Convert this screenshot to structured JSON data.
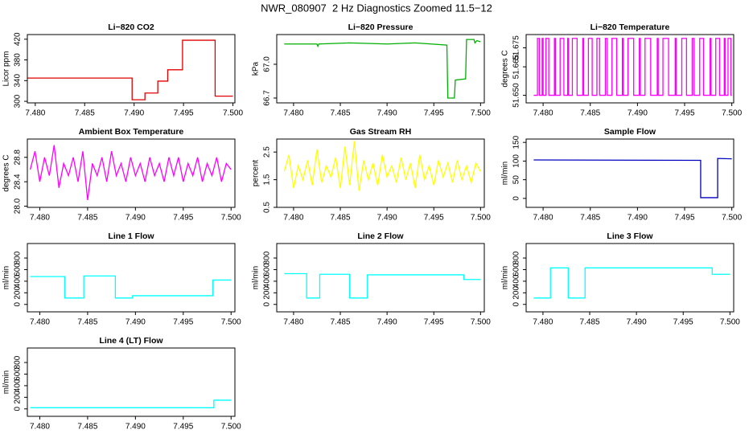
{
  "title": "NWR_080907  2 Hz Diagnostics Zoomed 11.5−12",
  "chart_data": [
    {
      "type": "line",
      "title": "Li−820 CO2",
      "ylabel": "Licor ppm",
      "color": "#e00000",
      "x": [
        7.479,
        7.4898,
        7.4898,
        7.4911,
        7.4911,
        7.4924,
        7.4924,
        7.4934,
        7.4934,
        7.4949,
        7.4949,
        7.4982,
        7.4982,
        7.5
      ],
      "values": [
        345,
        345,
        303,
        303,
        316,
        316,
        339,
        339,
        361,
        361,
        418,
        418,
        310,
        310
      ],
      "xlim": [
        7.4792,
        7.5002
      ],
      "ylim": [
        297,
        429
      ],
      "xticks": [
        {
          "value": 7.48,
          "label": "7.480"
        },
        {
          "value": 7.485,
          "label": "7.485"
        },
        {
          "value": 7.49,
          "label": "7.490"
        },
        {
          "value": 7.495,
          "label": "7.495"
        },
        {
          "value": 7.5,
          "label": "7.500"
        }
      ],
      "yticks": [
        300,
        340,
        380,
        420
      ]
    },
    {
      "type": "line",
      "title": "Li−820 Pressure",
      "ylabel": "kPa",
      "color": "#00b000",
      "x": [
        7.479,
        7.4825,
        7.4826,
        7.4827,
        7.486,
        7.49,
        7.493,
        7.4964,
        7.4965,
        7.4972,
        7.4973,
        7.4984,
        7.4985,
        7.4993,
        7.4994,
        7.4996,
        7.5
      ],
      "values": [
        67.18,
        67.18,
        67.16,
        67.18,
        67.19,
        67.18,
        67.19,
        67.17,
        66.7,
        66.7,
        66.86,
        66.87,
        67.22,
        67.22,
        67.19,
        67.21,
        67.2
      ],
      "xlim": [
        7.4782,
        7.5004
      ],
      "ylim": [
        66.657,
        67.264
      ],
      "xticks": [
        {
          "value": 7.48,
          "label": "7.480"
        },
        {
          "value": 7.485,
          "label": "7.485"
        },
        {
          "value": 7.49,
          "label": "7.490"
        },
        {
          "value": 7.495,
          "label": "7.495"
        },
        {
          "value": 7.5,
          "label": "7.500"
        }
      ],
      "yticks": [
        66.7,
        {
          "value": 67.0,
          "label": "67.0"
        }
      ]
    },
    {
      "type": "line",
      "title": "Li−820 Temperature",
      "ylabel": "degrees C",
      "color": "#ff00ff",
      "x": [
        7.479,
        7.4794,
        7.4794,
        7.4796,
        7.4796,
        7.4799,
        7.4799,
        7.48,
        7.48,
        7.4803,
        7.4803,
        7.4806,
        7.4806,
        7.4812,
        7.4812,
        7.4813,
        7.4813,
        7.4818,
        7.4818,
        7.4822,
        7.4822,
        7.4826,
        7.4826,
        7.4827,
        7.4827,
        7.4831,
        7.4831,
        7.4836,
        7.4836,
        7.4842,
        7.4842,
        7.4843,
        7.4843,
        7.4848,
        7.4848,
        7.4852,
        7.4852,
        7.4857,
        7.4857,
        7.486,
        7.486,
        7.4866,
        7.4866,
        7.4868,
        7.4868,
        7.4873,
        7.4873,
        7.4878,
        7.4878,
        7.4884,
        7.4884,
        7.4885,
        7.4885,
        7.489,
        7.489,
        7.4896,
        7.4896,
        7.4902,
        7.4902,
        7.4903,
        7.4903,
        7.4908,
        7.4908,
        7.4914,
        7.4914,
        7.4921,
        7.4921,
        7.4922,
        7.4922,
        7.4927,
        7.4927,
        7.4933,
        7.4933,
        7.494,
        7.494,
        7.4941,
        7.4941,
        7.4947,
        7.4947,
        7.4952,
        7.4952,
        7.4958,
        7.4958,
        7.496,
        7.496,
        7.4966,
        7.4966,
        7.497,
        7.497,
        7.4977,
        7.4977,
        7.4978,
        7.4978,
        7.4983,
        7.4983,
        7.4987,
        7.4987,
        7.4992,
        7.4992,
        7.4993,
        7.4993,
        7.4996,
        7.4996,
        7.4999,
        7.4999,
        7.5
      ],
      "values": [
        51.65,
        51.65,
        51.68,
        51.68,
        51.65,
        51.65,
        51.68,
        51.68,
        51.65,
        51.65,
        51.68,
        51.68,
        51.65,
        51.65,
        51.68,
        51.68,
        51.65,
        51.65,
        51.68,
        51.68,
        51.65,
        51.65,
        51.68,
        51.68,
        51.65,
        51.65,
        51.68,
        51.68,
        51.65,
        51.65,
        51.68,
        51.68,
        51.65,
        51.65,
        51.68,
        51.68,
        51.65,
        51.65,
        51.68,
        51.68,
        51.65,
        51.65,
        51.68,
        51.68,
        51.65,
        51.65,
        51.68,
        51.68,
        51.65,
        51.65,
        51.68,
        51.68,
        51.65,
        51.65,
        51.68,
        51.68,
        51.65,
        51.65,
        51.68,
        51.68,
        51.65,
        51.65,
        51.68,
        51.68,
        51.65,
        51.65,
        51.68,
        51.68,
        51.65,
        51.65,
        51.68,
        51.68,
        51.65,
        51.65,
        51.68,
        51.68,
        51.65,
        51.65,
        51.68,
        51.68,
        51.65,
        51.65,
        51.68,
        51.68,
        51.65,
        51.65,
        51.68,
        51.68,
        51.65,
        51.65,
        51.68,
        51.68,
        51.65,
        51.65,
        51.68,
        51.68,
        51.65,
        51.65,
        51.68,
        51.68,
        51.65,
        51.65,
        51.68,
        51.68,
        51.65,
        51.65
      ],
      "xlim": [
        7.4782,
        7.5002
      ],
      "ylim": [
        51.646,
        51.682
      ],
      "xticks": [
        {
          "value": 7.48,
          "label": "7.480"
        },
        {
          "value": 7.485,
          "label": "7.485"
        },
        {
          "value": 7.49,
          "label": "7.490"
        },
        {
          "value": 7.495,
          "label": "7.495"
        },
        {
          "value": 7.5,
          "label": "7.500"
        }
      ],
      "yticks": [
        {
          "value": 51.65,
          "label": "51.650"
        },
        {
          "value": 51.665,
          "label": "51.665"
        },
        {
          "value": 51.675,
          "label": "51.675"
        }
      ]
    },
    {
      "type": "line",
      "title": "Ambient Box Temperature",
      "ylabel": "degrees C",
      "color": "#ff00ff",
      "x": [
        7.479,
        7.4795,
        7.48,
        7.4805,
        7.481,
        7.4815,
        7.482,
        7.4825,
        7.483,
        7.4835,
        7.484,
        7.4845,
        7.485,
        7.4855,
        7.486,
        7.4865,
        7.487,
        7.4875,
        7.488,
        7.4885,
        7.489,
        7.4895,
        7.49,
        7.4905,
        7.491,
        7.4915,
        7.492,
        7.4925,
        7.493,
        7.4935,
        7.494,
        7.4945,
        7.495,
        7.4955,
        7.496,
        7.4965,
        7.497,
        7.4975,
        7.498,
        7.4985,
        7.499,
        7.4995,
        7.5
      ],
      "values": [
        28.6,
        28.9,
        28.4,
        28.8,
        28.5,
        29.0,
        28.3,
        28.7,
        28.5,
        28.8,
        28.4,
        28.9,
        28.1,
        28.7,
        28.5,
        28.8,
        28.4,
        28.9,
        28.5,
        28.7,
        28.4,
        28.8,
        28.5,
        28.7,
        28.4,
        28.8,
        28.5,
        28.7,
        28.4,
        28.8,
        28.5,
        28.8,
        28.4,
        28.7,
        28.5,
        28.8,
        28.4,
        28.7,
        28.5,
        28.8,
        28.4,
        28.7,
        28.6
      ],
      "xlim": [
        7.4787,
        7.5004
      ],
      "ylim": [
        27.98,
        29.1
      ],
      "xticks": [
        {
          "value": 7.48,
          "label": "7.480"
        },
        {
          "value": 7.485,
          "label": "7.485"
        },
        {
          "value": 7.49,
          "label": "7.490"
        },
        {
          "value": 7.495,
          "label": "7.495"
        },
        {
          "value": 7.5,
          "label": "7.500"
        }
      ],
      "yticks": [
        {
          "value": 28.0,
          "label": "28.0"
        },
        28.4,
        28.8
      ]
    },
    {
      "type": "line",
      "title": "Gas Stream RH",
      "ylabel": "percent",
      "color": "#ffff00",
      "x": [
        7.479,
        7.4795,
        7.48,
        7.4805,
        7.481,
        7.4815,
        7.482,
        7.4825,
        7.483,
        7.4835,
        7.484,
        7.4845,
        7.485,
        7.4855,
        7.486,
        7.4865,
        7.487,
        7.4875,
        7.488,
        7.4885,
        7.489,
        7.4895,
        7.49,
        7.4905,
        7.491,
        7.4915,
        7.492,
        7.4925,
        7.493,
        7.4935,
        7.494,
        7.4945,
        7.495,
        7.4955,
        7.496,
        7.4965,
        7.497,
        7.4975,
        7.498,
        7.4985,
        7.499,
        7.4995,
        7.5
      ],
      "values": [
        1.8,
        2.4,
        1.2,
        2.0,
        1.5,
        2.2,
        1.3,
        2.6,
        1.4,
        2.0,
        1.6,
        2.3,
        1.2,
        2.7,
        1.3,
        2.9,
        1.1,
        2.2,
        1.5,
        2.1,
        1.3,
        2.4,
        1.6,
        2.0,
        1.4,
        2.3,
        1.5,
        2.1,
        1.2,
        2.4,
        1.5,
        2.0,
        1.3,
        2.2,
        1.6,
        2.1,
        1.4,
        2.2,
        1.5,
        2.0,
        1.4,
        2.1,
        1.8
      ],
      "xlim": [
        7.4782,
        7.5004
      ],
      "ylim": [
        0.5,
        2.97
      ],
      "xticks": [
        {
          "value": 7.48,
          "label": "7.480"
        },
        {
          "value": 7.485,
          "label": "7.485"
        },
        {
          "value": 7.49,
          "label": "7.490"
        },
        {
          "value": 7.495,
          "label": "7.495"
        },
        {
          "value": 7.5,
          "label": "7.500"
        }
      ],
      "yticks": [
        0.5,
        1.5,
        2.5
      ]
    },
    {
      "type": "line",
      "title": "Sample Flow",
      "ylabel": "ml/min",
      "color": "#0000c0",
      "x": [
        7.479,
        7.4967,
        7.4967,
        7.4985,
        7.4985,
        7.5
      ],
      "values": [
        103,
        102,
        2,
        2,
        107,
        106
      ],
      "xlim": [
        7.4782,
        7.5002
      ],
      "ylim": [
        -24,
        159
      ],
      "xticks": [
        {
          "value": 7.48,
          "label": "7.480"
        },
        {
          "value": 7.485,
          "label": "7.485"
        },
        {
          "value": 7.49,
          "label": "7.490"
        },
        {
          "value": 7.495,
          "label": "7.495"
        },
        {
          "value": 7.5,
          "label": "7.500"
        }
      ],
      "yticks": [
        0,
        50,
        100,
        150
      ]
    },
    {
      "type": "line",
      "title": "Line 1 Flow",
      "ylabel": "ml/min",
      "color": "#00ffff",
      "x": [
        7.479,
        7.4826,
        7.4826,
        7.4846,
        7.4846,
        7.4879,
        7.4879,
        7.4897,
        7.4897,
        7.4981,
        7.4981,
        7.5
      ],
      "values": [
        480,
        480,
        110,
        110,
        490,
        490,
        110,
        110,
        150,
        150,
        420,
        420
      ],
      "xlim": [
        7.4787,
        7.5004
      ],
      "ylim": [
        -128,
        1050
      ],
      "xticks": [
        {
          "value": 7.48,
          "label": "7.480"
        },
        {
          "value": 7.485,
          "label": "7.485"
        },
        {
          "value": 7.49,
          "label": "7.490"
        },
        {
          "value": 7.495,
          "label": "7.495"
        },
        {
          "value": 7.5,
          "label": "7.500"
        }
      ],
      "yticks": [
        0,
        200,
        400,
        600,
        800
      ]
    },
    {
      "type": "line",
      "title": "Line 2 Flow",
      "ylabel": "ml/min",
      "color": "#00ffff",
      "x": [
        7.479,
        7.4814,
        7.4814,
        7.4828,
        7.4828,
        7.486,
        7.486,
        7.4879,
        7.4879,
        7.4982,
        7.4982,
        7.5
      ],
      "values": [
        530,
        530,
        110,
        110,
        520,
        520,
        110,
        110,
        510,
        510,
        430,
        430
      ],
      "xlim": [
        7.4782,
        7.5004
      ],
      "ylim": [
        -128,
        1050
      ],
      "xticks": [
        {
          "value": 7.48,
          "label": "7.480"
        },
        {
          "value": 7.485,
          "label": "7.485"
        },
        {
          "value": 7.49,
          "label": "7.490"
        },
        {
          "value": 7.495,
          "label": "7.495"
        },
        {
          "value": 7.5,
          "label": "7.500"
        }
      ],
      "yticks": [
        0,
        200,
        400,
        600,
        800
      ]
    },
    {
      "type": "line",
      "title": "Line 3 Flow",
      "ylabel": "ml/min",
      "color": "#00ffff",
      "x": [
        7.479,
        7.4808,
        7.4808,
        7.4827,
        7.4827,
        7.4845,
        7.4845,
        7.4981,
        7.4981,
        7.5
      ],
      "values": [
        110,
        110,
        630,
        630,
        110,
        110,
        630,
        630,
        520,
        520
      ],
      "xlim": [
        7.4782,
        7.5004
      ],
      "ylim": [
        -128,
        1050
      ],
      "xticks": [
        {
          "value": 7.48,
          "label": "7.480"
        },
        {
          "value": 7.485,
          "label": "7.485"
        },
        {
          "value": 7.49,
          "label": "7.490"
        },
        {
          "value": 7.495,
          "label": "7.495"
        },
        {
          "value": 7.5,
          "label": "7.500"
        }
      ],
      "yticks": [
        0,
        200,
        400,
        600,
        800
      ]
    },
    {
      "type": "line",
      "title": "Line 4 (LT) Flow",
      "ylabel": "ml/min",
      "color": "#00ffff",
      "x": [
        7.479,
        7.4982,
        7.4982,
        7.5
      ],
      "values": [
        20,
        20,
        150,
        150
      ],
      "xlim": [
        7.4787,
        7.5004
      ],
      "ylim": [
        -128,
        1050
      ],
      "xticks": [
        {
          "value": 7.48,
          "label": "7.480"
        },
        {
          "value": 7.485,
          "label": "7.485"
        },
        {
          "value": 7.49,
          "label": "7.490"
        },
        {
          "value": 7.495,
          "label": "7.495"
        },
        {
          "value": 7.5,
          "label": "7.500"
        }
      ],
      "yticks": [
        0,
        200,
        400,
        600,
        800
      ]
    }
  ]
}
